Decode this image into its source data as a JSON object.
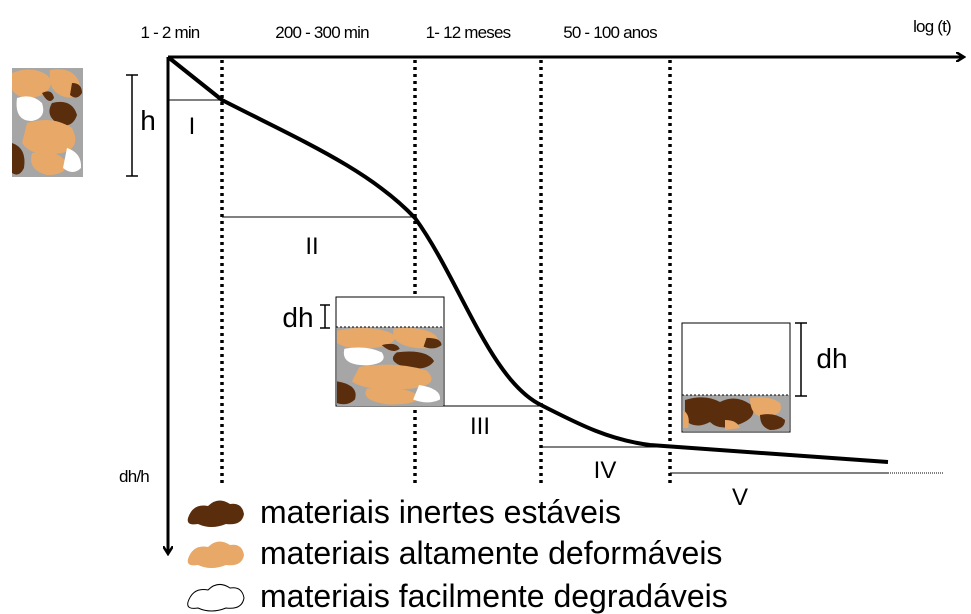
{
  "time_labels": [
    "1 - 2 min",
    "200 - 300 min",
    "1- 12 meses",
    "50 - 100 anos"
  ],
  "x_axis_label": "log (t)",
  "y_axis_label": "dh/h",
  "phases": [
    "I",
    "II",
    "III",
    "IV",
    "V"
  ],
  "height_label": "h",
  "settlement_labels": [
    "dh",
    "dh"
  ],
  "legend": [
    "materiais inertes estáveis",
    "materiais altamente deformáveis",
    "materiais facilmente degradáveis"
  ]
}
